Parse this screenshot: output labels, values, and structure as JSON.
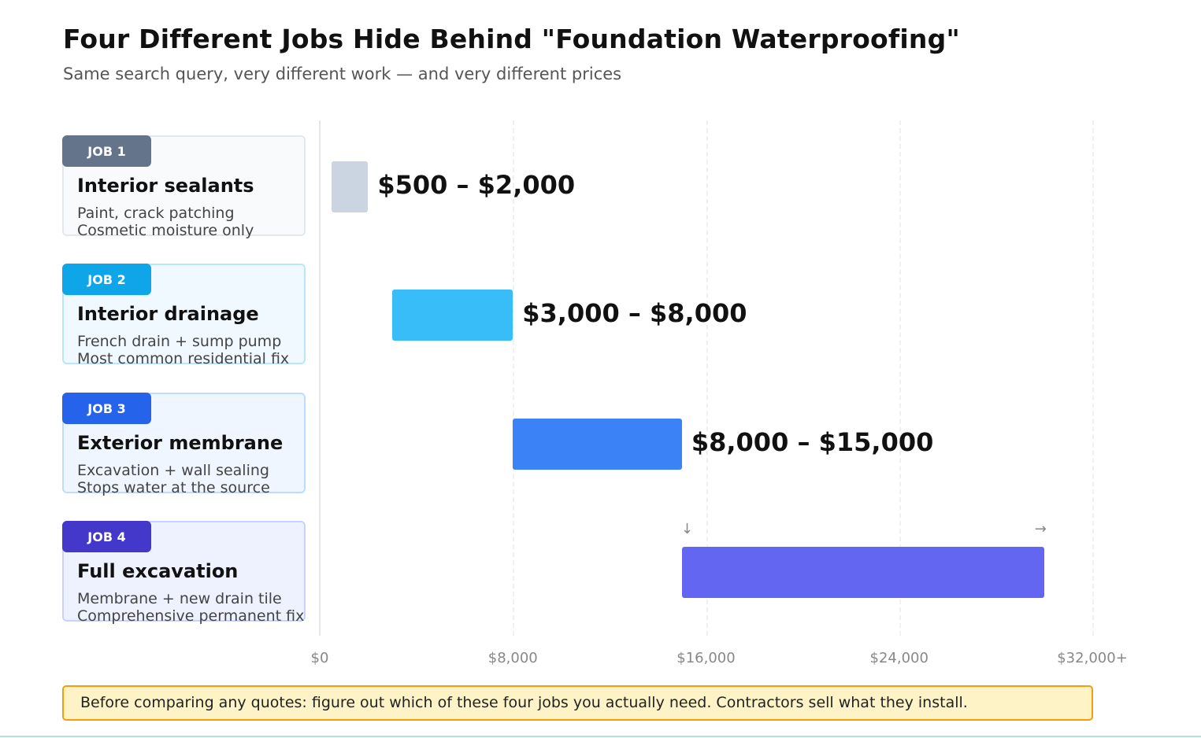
{
  "title": "Four Different Jobs Hide Behind \"Foundation Waterproofing\"",
  "subtitle": "Same search query, very different work — and very different prices",
  "jobs": [
    {
      "badge": "JOB 1",
      "name": "Interior sealants",
      "line1": "Paint, crack patching",
      "line2": "Cosmetic moisture only",
      "color": "#64748b",
      "card_bg": "#f8fafc",
      "card_border": "#e2e8f0"
    },
    {
      "badge": "JOB 2",
      "name": "Interior drainage",
      "line1": "French drain + sump pump",
      "line2": "Most common residential fix",
      "color": "#0ea5e9",
      "card_bg": "#f0f9ff",
      "card_border": "#bae6fd"
    },
    {
      "badge": "JOB 3",
      "name": "Exterior membrane",
      "line1": "Excavation + wall sealing",
      "line2": "Stops water at the source",
      "color": "#2563eb",
      "card_bg": "#eff6ff",
      "card_border": "#bfdbfe"
    },
    {
      "badge": "JOB 4",
      "name": "Full excavation",
      "line1": "Membrane + new drain tile",
      "line2": "Comprehensive permanent fix",
      "color": "#4338ca",
      "card_bg": "#eef2ff",
      "card_border": "#c7d2fe"
    }
  ],
  "chart_data": {
    "type": "bar",
    "orientation": "horizontal-range",
    "categories": [
      "JOB 1",
      "JOB 2",
      "JOB 3",
      "JOB 4"
    ],
    "ranges": [
      [
        500,
        2000
      ],
      [
        3000,
        8000
      ],
      [
        8000,
        15000
      ],
      [
        15000,
        30000
      ]
    ],
    "labels": [
      "$500 – $2,000",
      "$3,000 – $8,000",
      "$8,000 – $15,000",
      ""
    ],
    "colors": [
      "#cbd5e1",
      "#38bdf8",
      "#3b82f6",
      "#6366f1"
    ],
    "xlim": [
      0,
      32000
    ],
    "ticks": [
      0,
      8000,
      16000,
      24000,
      32000
    ],
    "tick_labels": [
      "$0",
      "$8,000",
      "$16,000",
      "$24,000",
      "$32,000+"
    ],
    "grid": true,
    "job4_arrows": [
      "↓",
      "→"
    ]
  },
  "note": "Before comparing any quotes: figure out which of these four jobs you actually need. Contractors sell what they install."
}
